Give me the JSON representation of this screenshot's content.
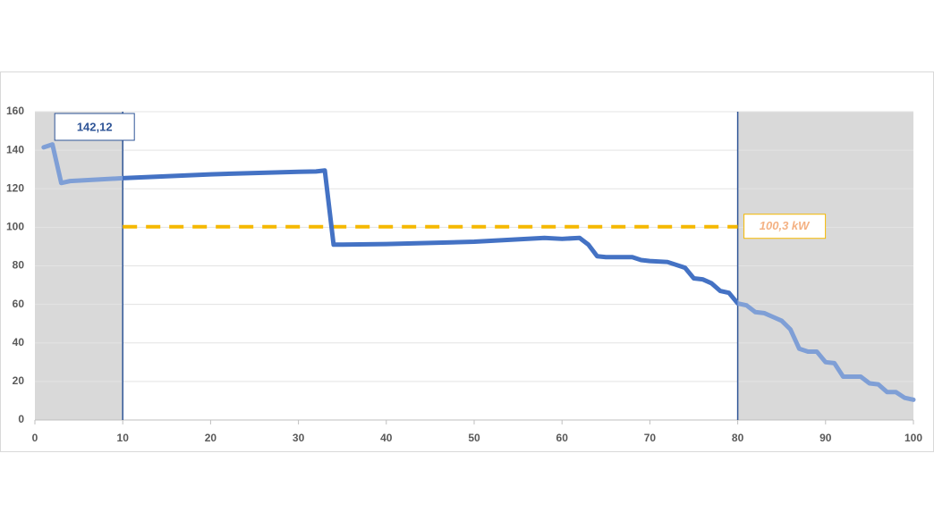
{
  "chart_data": {
    "type": "line",
    "x": [
      1,
      2,
      3,
      4,
      10,
      20,
      30,
      32,
      33,
      34,
      35,
      40,
      50,
      58,
      60,
      62,
      63,
      64,
      65,
      68,
      69,
      70,
      72,
      74,
      75,
      76,
      77,
      78,
      79,
      80,
      81,
      82,
      83,
      84,
      85,
      86,
      87,
      88,
      89,
      90,
      91,
      92,
      93,
      94,
      95,
      96,
      97,
      98,
      99,
      100
    ],
    "series": [
      {
        "color": "#4472c4",
        "faded_color": "#7f9fd6",
        "values": [
          141.5,
          143,
          123,
          124,
          125.5,
          127.5,
          128.8,
          129,
          129.5,
          91,
          91,
          91.3,
          92.5,
          94.5,
          94,
          94.5,
          91,
          85,
          84.5,
          84.5,
          83,
          82.5,
          82,
          79,
          73.5,
          73,
          71,
          67,
          66,
          60.5,
          59.5,
          56,
          55.5,
          53.5,
          51.5,
          47,
          37,
          35.5,
          35.5,
          30,
          29.5,
          22.5,
          22.5,
          22.5,
          19,
          18.5,
          14.5,
          14.5,
          11.5,
          10.5
        ]
      }
    ],
    "xlim": [
      0,
      100
    ],
    "ylim": [
      0,
      160
    ],
    "xticks": [
      0,
      10,
      20,
      30,
      40,
      50,
      60,
      70,
      80,
      90,
      100
    ],
    "yticks": [
      0,
      20,
      40,
      60,
      80,
      100,
      120,
      140,
      160
    ],
    "grid": true,
    "window": [
      10,
      80
    ],
    "shade_color": "#d9d9d9",
    "window_line_color": "#2f5597",
    "target": {
      "value": 100.3,
      "label": "100,3 kW",
      "color": "#f5b800"
    },
    "annotation": "142,12"
  }
}
